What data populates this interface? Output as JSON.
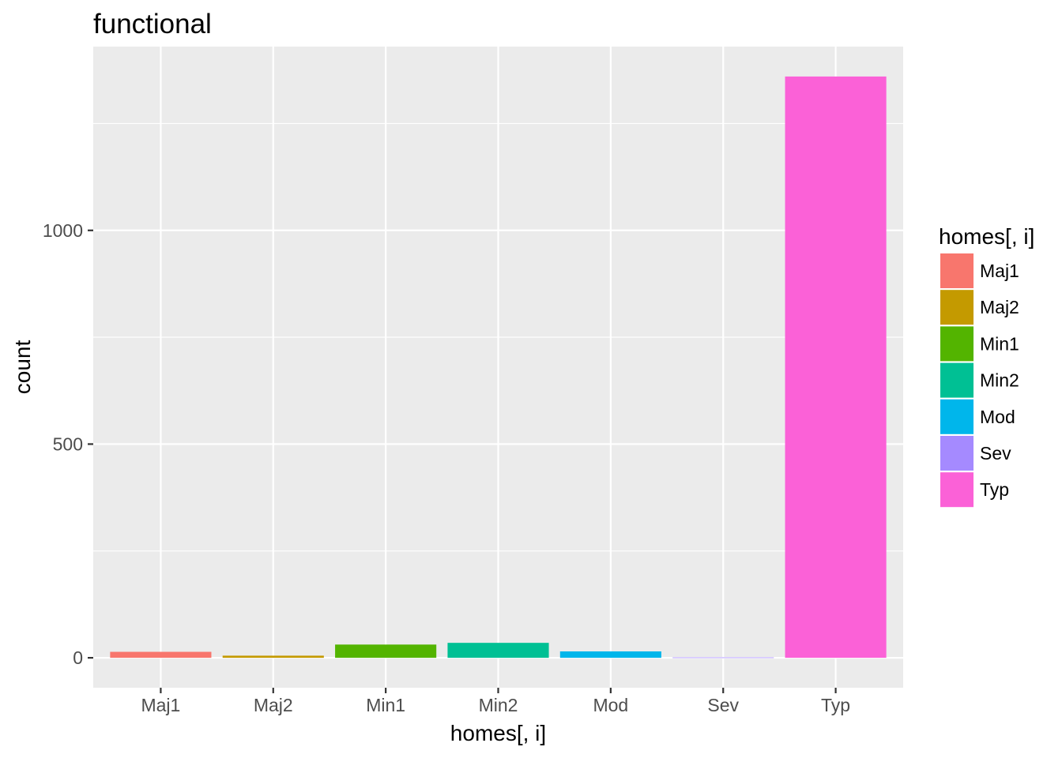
{
  "chart_data": {
    "type": "bar",
    "title": "functional",
    "xlabel": "homes[, i]",
    "ylabel": "count",
    "categories": [
      "Maj1",
      "Maj2",
      "Min1",
      "Min2",
      "Mod",
      "Sev",
      "Typ"
    ],
    "values": [
      14,
      5,
      31,
      35,
      15,
      1,
      1360
    ],
    "colors": [
      "#F8766D",
      "#C49A00",
      "#53B400",
      "#00C094",
      "#00B6EB",
      "#A58AFF",
      "#FB61D7"
    ],
    "ylim": [
      -70,
      1430
    ],
    "yticks": [
      0,
      500,
      1000
    ],
    "yticks_minor": [
      250,
      750,
      1250
    ],
    "ytick_labels": [
      "0",
      "500",
      "1000"
    ],
    "grid": true,
    "background": "#EBEBEB",
    "legend": {
      "title": "homes[, i]",
      "position": "right",
      "items": [
        "Maj1",
        "Maj2",
        "Min1",
        "Min2",
        "Mod",
        "Sev",
        "Typ"
      ]
    }
  }
}
